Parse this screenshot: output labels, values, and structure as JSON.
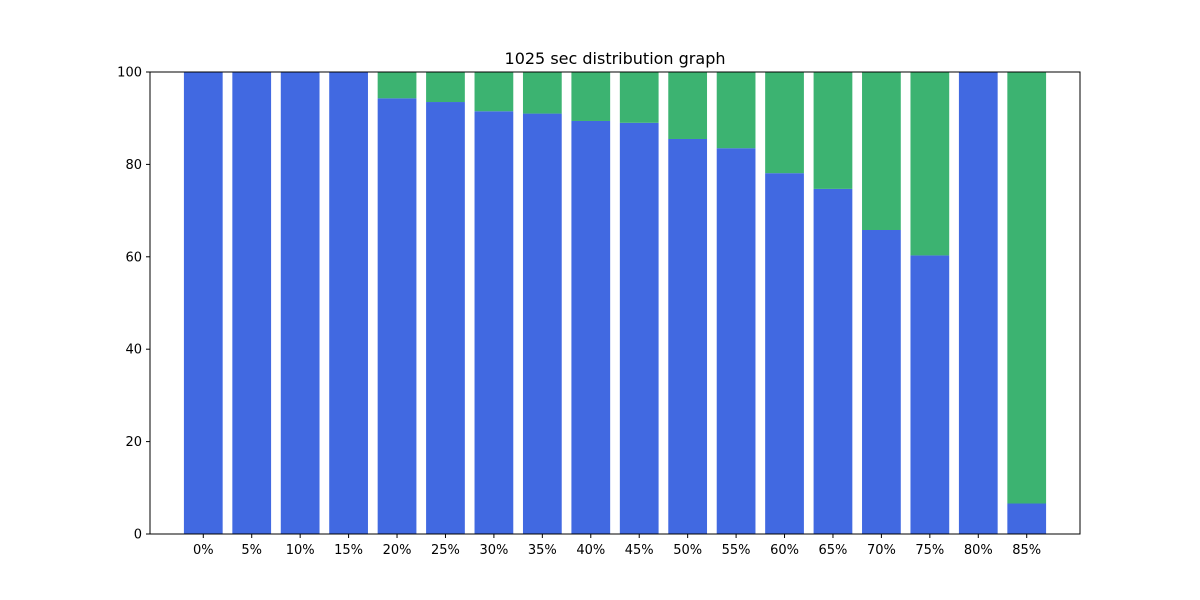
{
  "chart_data": {
    "type": "bar",
    "stacked": true,
    "title": "1025 sec distribution graph",
    "xlabel": "",
    "ylabel": "",
    "ylim": [
      0,
      100
    ],
    "yticks": [
      0,
      20,
      40,
      60,
      80,
      100
    ],
    "grid": false,
    "categories": [
      "0%",
      "5%",
      "10%",
      "15%",
      "20%",
      "25%",
      "30%",
      "35%",
      "40%",
      "45%",
      "50%",
      "55%",
      "60%",
      "65%",
      "70%",
      "75%",
      "80%",
      "85%"
    ],
    "series": [
      {
        "color": "#4169e1",
        "values": [
          100,
          100,
          100,
          100,
          94.3,
          93.5,
          91.5,
          91.0,
          89.4,
          89.0,
          85.5,
          83.5,
          78.1,
          74.7,
          65.8,
          60.3,
          100,
          6.6
        ]
      },
      {
        "color": "#3cb371",
        "values": [
          0,
          0,
          0,
          0,
          5.7,
          6.5,
          8.5,
          9.0,
          10.6,
          11.0,
          14.5,
          16.5,
          21.9,
          25.3,
          34.2,
          39.7,
          0,
          93.4
        ]
      }
    ]
  }
}
